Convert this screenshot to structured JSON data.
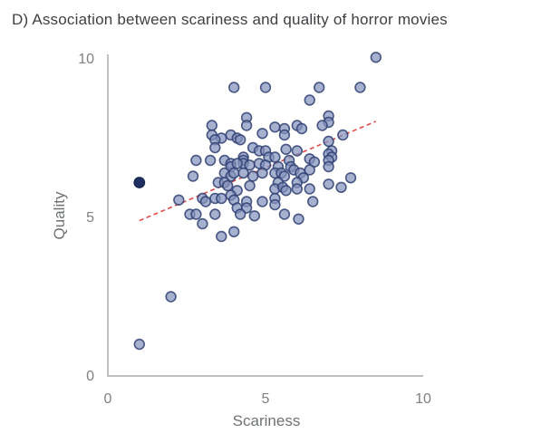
{
  "title": "D) Association between scariness and quality of horror movies",
  "chart_data": {
    "type": "scatter",
    "title": "D) Association between scariness and quality of horror movies",
    "xlabel": "Scariness",
    "ylabel": "Quality",
    "xlim": [
      0,
      10
    ],
    "ylim": [
      0,
      10
    ],
    "x_ticks": [
      0,
      5,
      10
    ],
    "y_ticks": [
      0,
      5,
      10
    ],
    "grid": false,
    "legend": "none",
    "marker": "circle",
    "colors": {
      "point_fill": "#8492bd",
      "point_stroke": "#2f3f72",
      "dark_point_fill": "#1e2f63",
      "dark_point_stroke": "#1a2854",
      "trend_line": "#e14b4b",
      "axis_line": "#a8abae",
      "tick_text": "#7d8184",
      "axis_label_text": "#6e7275",
      "title_text": "#3e4144"
    },
    "points": [
      [
        8.5,
        10.05
      ],
      [
        4.0,
        9.1
      ],
      [
        5.0,
        9.1
      ],
      [
        6.7,
        9.1
      ],
      [
        8.0,
        9.1
      ],
      [
        6.4,
        8.7
      ],
      [
        4.4,
        8.15
      ],
      [
        7.0,
        8.2
      ],
      [
        7.0,
        8.0
      ],
      [
        6.8,
        7.9
      ],
      [
        6.0,
        7.9
      ],
      [
        6.15,
        7.8
      ],
      [
        3.3,
        7.9
      ],
      [
        4.4,
        7.9
      ],
      [
        5.3,
        7.85
      ],
      [
        5.6,
        7.8
      ],
      [
        4.9,
        7.65
      ],
      [
        5.6,
        7.6
      ],
      [
        7.45,
        7.6
      ],
      [
        3.3,
        7.6
      ],
      [
        3.9,
        7.6
      ],
      [
        3.6,
        7.5
      ],
      [
        4.1,
        7.5
      ],
      [
        3.4,
        7.45
      ],
      [
        4.2,
        7.45
      ],
      [
        7.0,
        7.4
      ],
      [
        3.4,
        7.2
      ],
      [
        4.6,
        7.2
      ],
      [
        5.65,
        7.15
      ],
      [
        4.8,
        7.1
      ],
      [
        5.0,
        7.1
      ],
      [
        6.0,
        7.1
      ],
      [
        7.1,
        7.1
      ],
      [
        7.0,
        7.0
      ],
      [
        2.8,
        6.8
      ],
      [
        3.25,
        6.8
      ],
      [
        3.7,
        6.8
      ],
      [
        4.3,
        6.9
      ],
      [
        4.3,
        6.8
      ],
      [
        4.3,
        6.7
      ],
      [
        5.1,
        6.9
      ],
      [
        5.3,
        6.9
      ],
      [
        5.75,
        6.8
      ],
      [
        6.4,
        6.85
      ],
      [
        6.55,
        6.75
      ],
      [
        7.1,
        6.9
      ],
      [
        7.0,
        6.8
      ],
      [
        3.9,
        6.7
      ],
      [
        3.9,
        6.6
      ],
      [
        4.1,
        6.7
      ],
      [
        4.5,
        6.65
      ],
      [
        4.8,
        6.7
      ],
      [
        5.0,
        6.65
      ],
      [
        5.4,
        6.6
      ],
      [
        5.8,
        6.6
      ],
      [
        5.9,
        6.5
      ],
      [
        6.4,
        6.5
      ],
      [
        7.0,
        6.6
      ],
      [
        2.7,
        6.3
      ],
      [
        3.7,
        6.4
      ],
      [
        3.9,
        6.3
      ],
      [
        4.0,
        6.4
      ],
      [
        4.3,
        6.4
      ],
      [
        4.6,
        6.3
      ],
      [
        4.9,
        6.4
      ],
      [
        5.3,
        6.4
      ],
      [
        5.5,
        6.4
      ],
      [
        5.6,
        6.3
      ],
      [
        6.1,
        6.4
      ],
      [
        6.2,
        6.25
      ],
      [
        7.7,
        6.25
      ],
      [
        3.5,
        6.1
      ],
      [
        3.7,
        6.1
      ],
      [
        3.8,
        6.0
      ],
      [
        4.1,
        5.85
      ],
      [
        4.5,
        6.0
      ],
      [
        5.4,
        6.1
      ],
      [
        5.3,
        5.9
      ],
      [
        5.55,
        5.95
      ],
      [
        5.65,
        5.85
      ],
      [
        6.0,
        6.1
      ],
      [
        6.0,
        5.9
      ],
      [
        6.4,
        5.9
      ],
      [
        7.0,
        6.05
      ],
      [
        7.4,
        5.95
      ],
      [
        2.25,
        5.55
      ],
      [
        3.0,
        5.6
      ],
      [
        3.1,
        5.5
      ],
      [
        3.4,
        5.6
      ],
      [
        3.6,
        5.6
      ],
      [
        3.9,
        5.7
      ],
      [
        4.0,
        5.55
      ],
      [
        4.4,
        5.5
      ],
      [
        4.9,
        5.5
      ],
      [
        5.3,
        5.6
      ],
      [
        5.3,
        5.4
      ],
      [
        6.5,
        5.5
      ],
      [
        4.1,
        5.3
      ],
      [
        4.4,
        5.3
      ],
      [
        2.6,
        5.1
      ],
      [
        2.8,
        5.1
      ],
      [
        3.0,
        4.8
      ],
      [
        3.4,
        5.1
      ],
      [
        4.2,
        5.1
      ],
      [
        4.65,
        5.05
      ],
      [
        5.6,
        5.1
      ],
      [
        6.05,
        4.95
      ],
      [
        3.6,
        4.4
      ],
      [
        4.0,
        4.55
      ],
      [
        2.0,
        2.5
      ],
      [
        1.0,
        1.0
      ]
    ],
    "dark_point": [
      1.0,
      6.1
    ],
    "trend_line": {
      "x1": 1.0,
      "y1": 4.9,
      "x2": 8.5,
      "y2": 8.03,
      "style": "dashed"
    }
  }
}
